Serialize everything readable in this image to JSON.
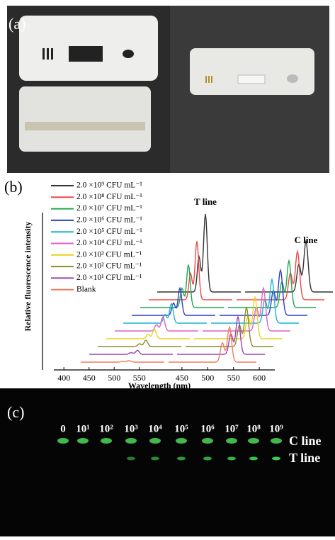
{
  "panel_a": {
    "label": "(a)"
  },
  "chart_data": {
    "type": "line",
    "panel_label": "(b)",
    "y_label": "Relative fluorescence intensity",
    "x_label": "Wavelength (nm)",
    "categories": [
      "T line",
      "C line"
    ],
    "xlim": [
      [
        380,
        580
      ],
      [
        420,
        630
      ]
    ],
    "xticks": [
      [
        400,
        450,
        500,
        550
      ],
      [
        450,
        500,
        550,
        600
      ]
    ],
    "series": [
      {
        "name": "2.0 ×10⁹ CFU mL⁻¹",
        "color": "#333333",
        "values": [
          1.0,
          0.65
        ]
      },
      {
        "name": "2.0 ×10⁸ CFU mL⁻¹",
        "color": "#f04848",
        "values": [
          0.75,
          0.62
        ]
      },
      {
        "name": "2.0 ×10⁷ CFU mL⁻¹",
        "color": "#1da84c",
        "values": [
          0.55,
          0.6
        ]
      },
      {
        "name": "2.0 ×10⁶ CFU mL⁻¹",
        "color": "#2c3fc0",
        "values": [
          0.35,
          0.58
        ]
      },
      {
        "name": "2.0 ×10⁵ CFU mL⁻¹",
        "color": "#19b6d2",
        "values": [
          0.25,
          0.56
        ]
      },
      {
        "name": "2.0 ×10⁴ CFU mL⁻¹",
        "color": "#e062c4",
        "values": [
          0.18,
          0.55
        ]
      },
      {
        "name": "2.0 ×10³ CFU mL⁻¹",
        "color": "#e8d21c",
        "values": [
          0.12,
          0.53
        ]
      },
      {
        "name": "2.0 ×10² CFU mL⁻¹",
        "color": "#8c8c2c",
        "values": [
          0.08,
          0.5
        ]
      },
      {
        "name": "2.0 ×10¹ CFU mL⁻¹",
        "color": "#9a42b2",
        "values": [
          0.05,
          0.48
        ]
      },
      {
        "name": "Blank",
        "color": "#f27c5c",
        "values": [
          0.02,
          0.45
        ]
      }
    ]
  },
  "panel_c": {
    "label": "(c)",
    "concentrations": [
      "0",
      "10¹",
      "10²",
      "10³",
      "10⁴",
      "10⁵",
      "10⁶",
      "10⁷",
      "10⁸",
      "10⁹"
    ],
    "line_labels": [
      "C line",
      "T line"
    ]
  }
}
